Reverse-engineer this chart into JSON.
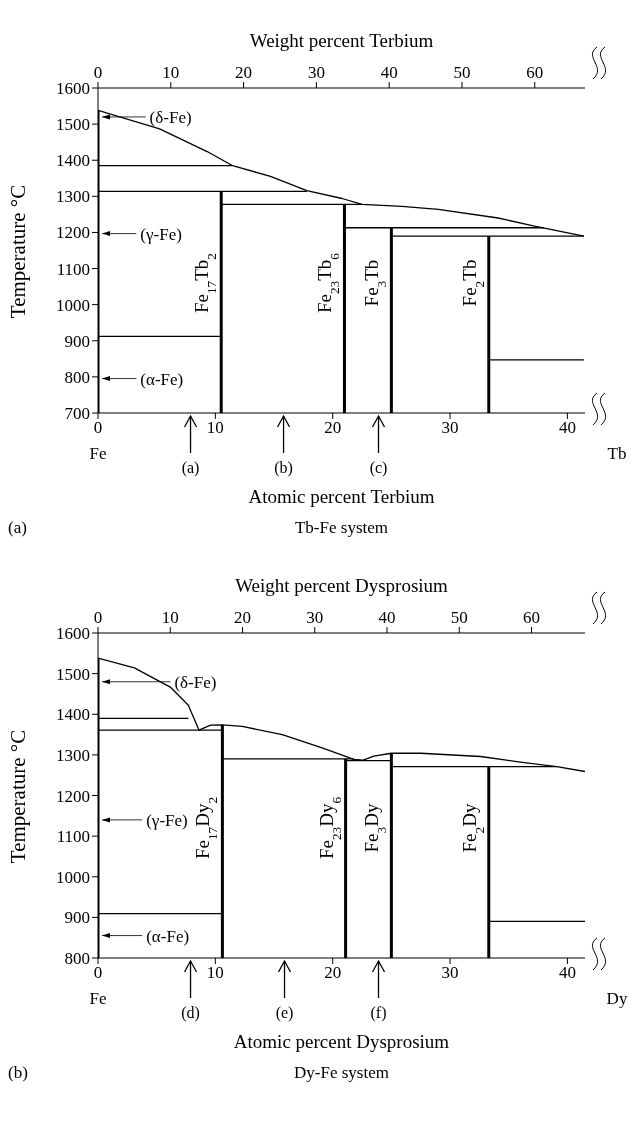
{
  "chart_data": [
    {
      "type": "line",
      "title": "(a)",
      "subtitle": "Tb-Fe system",
      "xlabel": "Atomic percent Terbium",
      "x2label": "Weight percent Terbium",
      "ylabel": "Temperature  °C",
      "xlim": [
        0,
        41.5
      ],
      "xticks": [
        0,
        10,
        20,
        30,
        40
      ],
      "ylim": [
        700,
        1600
      ],
      "yticks": [
        700,
        800,
        900,
        1000,
        1100,
        1200,
        1300,
        1400,
        1500,
        1600
      ],
      "x2lim": [
        0,
        66.9
      ],
      "x2ticks": [
        0,
        10,
        20,
        30,
        40,
        50,
        60
      ],
      "series": [
        {
          "color": "#000000",
          "x": [
            0,
            5.25,
            9.3,
            11.4,
            14.7,
            17.8,
            20.8,
            22.5,
            25.9,
            29.0,
            34.1,
            37.1,
            41.4
          ],
          "values": [
            1538,
            1487,
            1424,
            1386,
            1355,
            1316,
            1294,
            1278,
            1272,
            1264,
            1240,
            1218,
            1190
          ]
        },
        {
          "color": "#000000",
          "x": [
            0,
            11.4
          ],
          "values": [
            1385,
            1385
          ]
        },
        {
          "color": "#000000",
          "x": [
            0,
            17.8
          ],
          "values": [
            1314,
            1314
          ]
        },
        {
          "color": "#000000",
          "x": [
            10.5,
            22.5
          ],
          "values": [
            1278,
            1278
          ]
        },
        {
          "color": "#000000",
          "x": [
            21,
            38
          ],
          "values": [
            1213,
            1213
          ]
        },
        {
          "color": "#000000",
          "x": [
            25,
            41.4
          ],
          "values": [
            1190,
            1190
          ]
        },
        {
          "color": "#000000",
          "x": [
            0,
            10.5
          ],
          "values": [
            912,
            912
          ]
        },
        {
          "color": "#000000",
          "x": [
            33.3,
            41.4
          ],
          "values": [
            847,
            847
          ]
        },
        {
          "color": "#000000",
          "x": [
            0,
            0
          ],
          "values": [
            700,
            1538
          ]
        },
        {
          "name": "Fe$_{17}$Tb$_{2}$",
          "color": "#000000",
          "x": [
            10.5,
            10.5
          ],
          "values": [
            700,
            1314
          ]
        },
        {
          "name": "Fe$_{23}$Tb$_{6}$",
          "color": "#000000",
          "x": [
            21,
            21
          ],
          "values": [
            700,
            1278
          ]
        },
        {
          "name": "Fe$_{3}$Tb",
          "color": "#000000",
          "x": [
            25,
            25
          ],
          "values": [
            700,
            1213
          ]
        },
        {
          "name": "Fe$_{2}$Tb",
          "color": "#000000",
          "x": [
            33.3,
            33.3
          ],
          "values": [
            700,
            1190
          ]
        }
      ],
      "annotations": [
        "Fe",
        "Tb",
        "(δ-Fe)",
        "(γ-Fe)",
        "(α-Fe)",
        "(a)",
        "(b)",
        "(c)"
      ]
    },
    {
      "type": "line",
      "title": "(b)",
      "subtitle": "Dy-Fe system",
      "xlabel": "Atomic percent Dysprosium",
      "x2label": "Weight percent Dysprosium",
      "ylabel": "Temperature  °C",
      "xlim": [
        0,
        41.5
      ],
      "xticks": [
        0,
        10,
        20,
        30,
        40
      ],
      "ylim": [
        800,
        1600
      ],
      "yticks": [
        800,
        900,
        1000,
        1100,
        1200,
        1300,
        1400,
        1500,
        1600
      ],
      "x2lim": [
        0,
        67.4
      ],
      "x2ticks": [
        0,
        10,
        20,
        30,
        40,
        50,
        60
      ],
      "series": [
        {
          "color": "#000000",
          "x": [
            0,
            3.1,
            6.2,
            7.7,
            8.6,
            9.6,
            10.6,
            12.3,
            15.7,
            19.1,
            21.8,
            22.6,
            23.5,
            25.0,
            27.5,
            32.6,
            36.0,
            39.1,
            41.5
          ],
          "values": [
            1538,
            1514,
            1466,
            1422,
            1361,
            1373,
            1374,
            1370,
            1350,
            1317,
            1289,
            1287,
            1297,
            1304,
            1304,
            1296,
            1282,
            1271,
            1259
          ]
        },
        {
          "color": "#000000",
          "x": [
            0,
            7.7
          ],
          "values": [
            1390,
            1390
          ]
        },
        {
          "color": "#000000",
          "x": [
            0,
            10.6
          ],
          "values": [
            1361,
            1361
          ]
        },
        {
          "color": "#000000",
          "x": [
            10.6,
            21.8
          ],
          "values": [
            1290,
            1290
          ]
        },
        {
          "color": "#000000",
          "x": [
            21.1,
            25
          ],
          "values": [
            1286,
            1286
          ]
        },
        {
          "color": "#000000",
          "x": [
            25,
            39.1
          ],
          "values": [
            1271,
            1271
          ]
        },
        {
          "color": "#000000",
          "x": [
            0,
            10.6
          ],
          "values": [
            909,
            909
          ]
        },
        {
          "color": "#000000",
          "x": [
            33.3,
            41.5
          ],
          "values": [
            890,
            890
          ]
        },
        {
          "color": "#000000",
          "x": [
            0,
            0
          ],
          "values": [
            800,
            1538
          ]
        },
        {
          "name": "Fe$_{17}$Dy$_{2}$",
          "color": "#000000",
          "x": [
            10.6,
            10.6
          ],
          "values": [
            800,
            1374
          ]
        },
        {
          "name": "Fe$_{23}$Dy$_{6}$",
          "color": "#000000",
          "x": [
            21.1,
            21.1
          ],
          "values": [
            800,
            1290
          ]
        },
        {
          "name": "Fe$_{3}$Dy",
          "color": "#000000",
          "x": [
            25,
            25
          ],
          "values": [
            800,
            1304
          ]
        },
        {
          "name": "Fe$_{2}$Dy",
          "color": "#000000",
          "x": [
            33.3,
            33.3
          ],
          "values": [
            800,
            1271
          ]
        }
      ],
      "annotations": [
        "Fe",
        "Dy",
        "(δ-Fe)",
        "(γ-Fe)",
        "(α-Fe)",
        "(d)",
        "(e)",
        "(f)"
      ]
    }
  ]
}
